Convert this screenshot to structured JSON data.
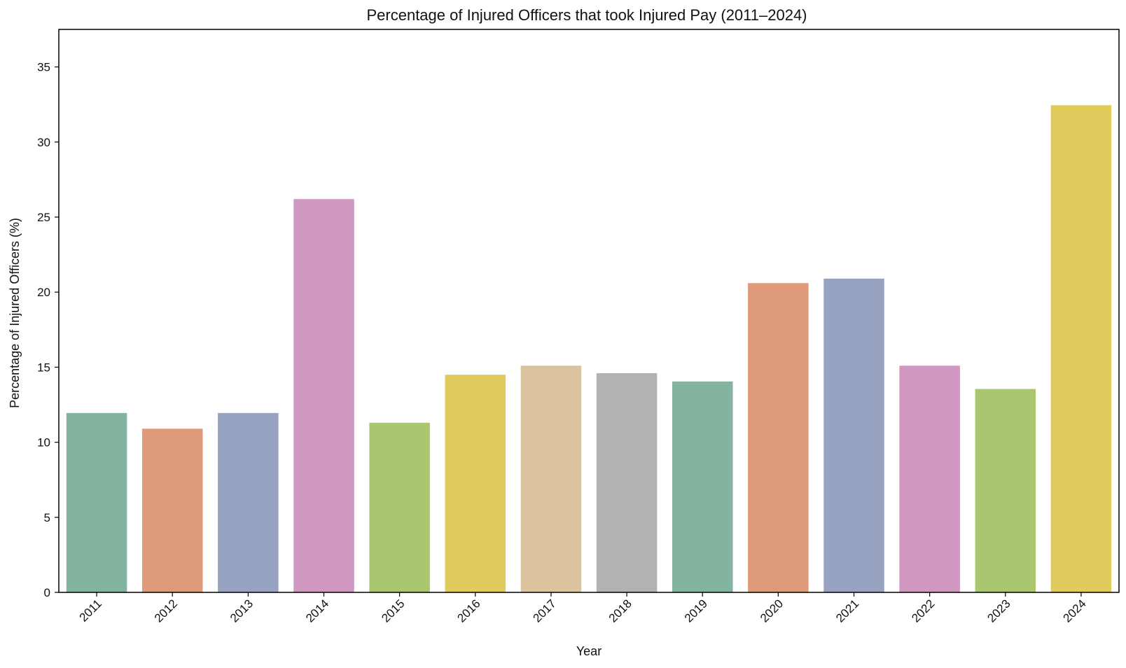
{
  "chart_data": {
    "type": "bar",
    "title": "Percentage of Injured Officers that took Injured Pay (2011–2024)",
    "xlabel": "Year",
    "ylabel": "Percentage of Injured Officers (%)",
    "categories": [
      "2011",
      "2012",
      "2013",
      "2014",
      "2015",
      "2016",
      "2017",
      "2018",
      "2019",
      "2020",
      "2021",
      "2022",
      "2023",
      "2024"
    ],
    "values": [
      11.95,
      10.9,
      11.95,
      26.2,
      11.3,
      14.5,
      15.1,
      14.6,
      14.05,
      20.6,
      20.9,
      15.1,
      13.55,
      32.45
    ],
    "ylim": [
      0,
      37.5
    ],
    "yticks": [
      0,
      5,
      10,
      15,
      20,
      25,
      30,
      35
    ],
    "colors": [
      "#83b4a0",
      "#de9a7a",
      "#98a3c2",
      "#d097c0",
      "#aac76f",
      "#e1cb5c",
      "#dbc3a0",
      "#b2b2b2",
      "#83b4a0",
      "#de9a7a",
      "#98a3c2",
      "#d097c0",
      "#aac76f",
      "#e1cb5c"
    ],
    "grid": false,
    "legend": "none"
  }
}
